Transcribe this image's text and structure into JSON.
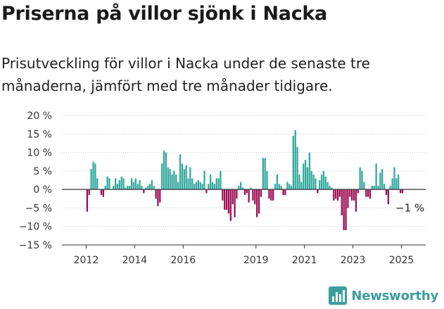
{
  "header": {
    "title": "Priserna på villor sjönk i Nacka",
    "subtitle": "Prisutveckling för villor i Nacka under de senaste tre månaderna, jämfört med tre månader tidigare."
  },
  "brand": {
    "name": "Newsworthy",
    "icon": "bar-chart-logo-icon",
    "color": "#3a9e9c"
  },
  "colors": {
    "positive": "#2fa79b",
    "negative": "#9b0a52",
    "grid": "#cccccc",
    "axis": "#333333"
  },
  "chart_data": {
    "type": "bar",
    "ylim": [
      -15,
      20
    ],
    "xlim": [
      2011.0,
      2026.0
    ],
    "y_ticks": [
      20,
      15,
      10,
      5,
      0,
      -5,
      -10,
      -15
    ],
    "y_tick_labels": [
      "20 %",
      "15 %",
      "10 %",
      "5 %",
      "0 %",
      "−5 %",
      "−10 %",
      "−15 %"
    ],
    "x_ticks": [
      2012,
      2014,
      2016,
      2019,
      2021,
      2023,
      2025
    ],
    "x_tick_labels": [
      "2012",
      "2014",
      "2016",
      "2019",
      "2021",
      "2023",
      "2025"
    ],
    "annotation": {
      "text": "−1 %",
      "value": -1
    },
    "grid": "horizontal",
    "start_period": "2012-01",
    "values": [
      -6,
      -1.5,
      5.5,
      7.5,
      7,
      3,
      0,
      -1.5,
      -2,
      1,
      3.5,
      3,
      0,
      1,
      3,
      1.5,
      2.5,
      3.5,
      3,
      0.5,
      1,
      1,
      3,
      2,
      3,
      1.5,
      2.5,
      1,
      -1,
      0.5,
      1,
      1.5,
      2.5,
      1,
      -2.5,
      -4.5,
      -3.5,
      7,
      10.5,
      10,
      6,
      5.5,
      4,
      5,
      4,
      2,
      9.5,
      7,
      5.5,
      6.5,
      3,
      6,
      3,
      1.5,
      2,
      2.5,
      2,
      1.5,
      5,
      -1,
      1.5,
      4,
      2,
      1.5,
      3,
      3,
      5,
      -3,
      -5.5,
      -5.5,
      -6.5,
      -8.5,
      -4,
      -7.5,
      -2.5,
      1,
      2,
      0.5,
      -1.5,
      -1,
      -3.5,
      0.5,
      -3,
      -4,
      -7.5,
      -6.5,
      -2,
      8.5,
      8.5,
      5,
      -2.5,
      -3,
      -3,
      1.5,
      4,
      1.5,
      1,
      -1.5,
      -1.5,
      2,
      1.5,
      1,
      14.5,
      16,
      11.5,
      4,
      2,
      7,
      8,
      6,
      10,
      5,
      4,
      3,
      -1,
      2.5,
      4,
      5,
      3.5,
      2,
      1,
      0.5,
      -3,
      -2.5,
      -3,
      -2,
      -7,
      -11,
      -11,
      -5,
      -2,
      -3,
      -3,
      -6,
      -1,
      6,
      5,
      2,
      -2,
      -2,
      -2.5,
      1,
      1,
      7,
      1,
      4.5,
      5.5,
      1.5,
      -1.5,
      -4,
      1,
      3,
      6,
      3,
      4,
      -1,
      -1
    ]
  }
}
